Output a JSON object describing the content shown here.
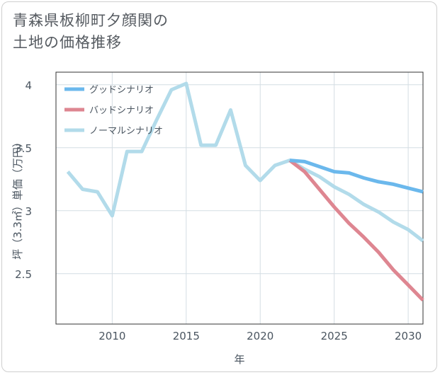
{
  "title": {
    "line1": "青森県板柳町夕顔関の",
    "line2": "土地の価格推移"
  },
  "chart_data": {
    "type": "line",
    "xlabel": "年",
    "ylabel": "坪（3.3㎡）単価（万円）",
    "xlim": [
      2006.2,
      2031
    ],
    "ylim": [
      2.1,
      4.1
    ],
    "xticks": [
      2010,
      2015,
      2020,
      2025,
      2030
    ],
    "yticks": [
      2.5,
      3,
      3.5,
      4
    ],
    "ytick_labels": [
      "2.5",
      "3",
      "3.5",
      "4"
    ],
    "grid": true,
    "legend_position": "top-left",
    "series": [
      {
        "name": "グッドシナリオ",
        "color": "#6bb8ec",
        "x": [
          2022,
          2023,
          2024,
          2025,
          2026,
          2027,
          2028,
          2029,
          2030,
          2031
        ],
        "y": [
          3.4,
          3.39,
          3.35,
          3.31,
          3.3,
          3.26,
          3.23,
          3.21,
          3.18,
          3.15
        ]
      },
      {
        "name": "バッドシナリオ",
        "color": "#de8691",
        "x": [
          2022,
          2023,
          2024,
          2025,
          2026,
          2027,
          2028,
          2029,
          2030,
          2031
        ],
        "y": [
          3.4,
          3.31,
          3.17,
          3.03,
          2.9,
          2.79,
          2.67,
          2.53,
          2.41,
          2.29
        ]
      },
      {
        "name": "ノーマルシナリオ",
        "color": "#b2dbea",
        "x": [
          2007,
          2008,
          2009,
          2010,
          2011,
          2012,
          2013,
          2014,
          2015,
          2016,
          2017,
          2018,
          2019,
          2020,
          2021,
          2022,
          2023,
          2024,
          2025,
          2026,
          2027,
          2028,
          2029,
          2030,
          2031
        ],
        "y": [
          3.31,
          3.17,
          3.15,
          2.96,
          3.47,
          3.47,
          3.72,
          3.96,
          4.01,
          3.52,
          3.52,
          3.8,
          3.36,
          3.24,
          3.36,
          3.4,
          3.33,
          3.27,
          3.19,
          3.13,
          3.05,
          2.99,
          2.91,
          2.85,
          2.76
        ]
      }
    ]
  }
}
